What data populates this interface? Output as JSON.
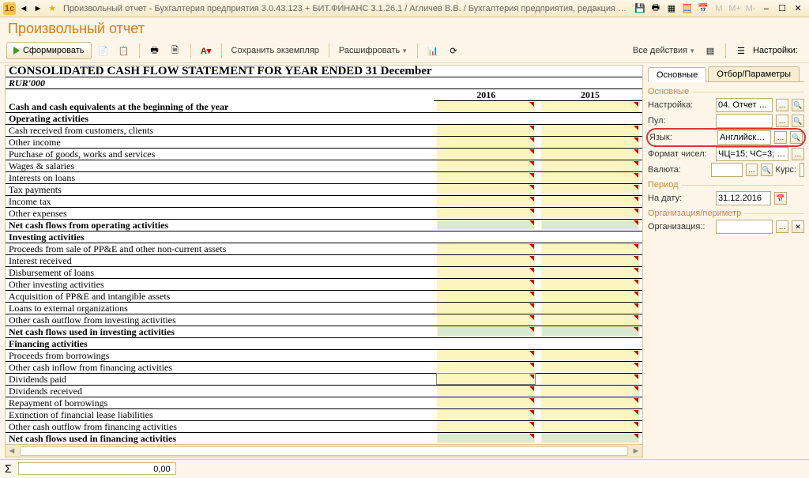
{
  "window": {
    "title": "Произвольный отчет - Бухгалтерия предприятия 3.0.43.123 + БИТ.ФИНАНС 3.1.26.1 / Агличев В.В. / Бухгалтерия предприятия, редакция 3.0  БИ…  (1С:Предприятие)"
  },
  "header": {
    "title": "Произвольный отчет"
  },
  "toolbar": {
    "form_btn": "Сформировать",
    "save_copy": "Сохранить экземпляр",
    "decrypt": "Расшифровать",
    "all_actions": "Все действия",
    "settings_label": "Настройки:"
  },
  "report": {
    "title": "CONSOLIDATED CASH FLOW STATEMENT FOR YEAR ENDED 31 December",
    "currency": "RUR'000",
    "years": [
      "2016",
      "2015"
    ],
    "rows": [
      {
        "t": "Cash and cash equivalents at the beginning of the year",
        "b": true,
        "c": [
          1,
          1
        ]
      },
      {
        "t": "Operating activities",
        "b": true,
        "c": [
          0,
          0
        ]
      },
      {
        "t": "Cash received from customers, clients",
        "c": [
          1,
          1
        ]
      },
      {
        "t": "Other income",
        "c": [
          1,
          1
        ]
      },
      {
        "t": "Purchase of goods, works and services",
        "c": [
          1,
          1
        ]
      },
      {
        "t": "Wages & salaries",
        "c": [
          1,
          1
        ]
      },
      {
        "t": "Interests on loans",
        "c": [
          1,
          1
        ]
      },
      {
        "t": "Tax payments",
        "c": [
          1,
          1
        ]
      },
      {
        "t": "Income tax",
        "c": [
          1,
          1
        ]
      },
      {
        "t": "Other expenses",
        "c": [
          1,
          1
        ]
      },
      {
        "t": "Net cash flows from operating activities",
        "b": true,
        "c": [
          2,
          2
        ]
      },
      {
        "t": "Investing activities",
        "b": true,
        "c": [
          0,
          0
        ]
      },
      {
        "t": "Proceeds from sale of PP&E and other non-current assets",
        "c": [
          1,
          1
        ]
      },
      {
        "t": "Interest received",
        "c": [
          1,
          1
        ]
      },
      {
        "t": "Disbursement of loans",
        "c": [
          1,
          1
        ]
      },
      {
        "t": "Other investing activities",
        "c": [
          1,
          1
        ]
      },
      {
        "t": "Acquisition of PP&E and intangible assets",
        "c": [
          1,
          1
        ]
      },
      {
        "t": "Loans to external organizations",
        "c": [
          1,
          1
        ]
      },
      {
        "t": "Other cash outflow from investing activities",
        "c": [
          1,
          1
        ]
      },
      {
        "t": "Net cash flows used in investing activities",
        "b": true,
        "c": [
          2,
          2
        ]
      },
      {
        "t": "Financing activities",
        "b": true,
        "c": [
          0,
          0
        ]
      },
      {
        "t": "Proceeds from borrowings",
        "c": [
          1,
          1
        ]
      },
      {
        "t": "Other cash inflow from financing activities",
        "c": [
          1,
          1
        ]
      },
      {
        "t": "Dividends paid",
        "c": [
          3,
          1
        ]
      },
      {
        "t": "Dividends received",
        "c": [
          1,
          1
        ]
      },
      {
        "t": "Repayment of borrowings",
        "c": [
          1,
          1
        ]
      },
      {
        "t": "Extinction of financial lease liabilities",
        "c": [
          1,
          1
        ]
      },
      {
        "t": "Other cash outflow from  financing activities",
        "c": [
          1,
          1
        ]
      },
      {
        "t": "Net cash flows used in financing activities",
        "b": true,
        "c": [
          2,
          2
        ]
      },
      {
        "t": "Exchange adjustment",
        "c": [
          1,
          1
        ]
      },
      {
        "t": "Net increase in cash and cash equivalents in the year",
        "b": true,
        "c": [
          2,
          2
        ]
      },
      {
        "t": "Cash and cash equivalents at 31 December",
        "b": true,
        "c": [
          2,
          2
        ]
      }
    ],
    "cell_colors": {
      "1": "#fbf6bf",
      "2": "#d9ead3",
      "3": "#fbf6bf"
    }
  },
  "settings": {
    "tabs": [
      "Основные",
      "Отбор/Параметры"
    ],
    "group_main": "Основные",
    "fields": {
      "setting": {
        "label": "Настройка:",
        "value": "04. Отчет о движении денеж"
      },
      "pool": {
        "label": "Пул:",
        "value": ""
      },
      "lang": {
        "label": "Язык:",
        "value": "Английский (США)"
      },
      "numfmt": {
        "label": "Формат чисел:",
        "value": "ЧЦ=15; ЧС=3; ЧО=0"
      },
      "currency": {
        "label": "Валюта:",
        "value": ""
      },
      "rate": {
        "label": "Курс:",
        "value": "0,0000"
      }
    },
    "group_period": "Период",
    "date": {
      "label": "На дату:",
      "value": "31.12.2016"
    },
    "group_org": "Организация/периметр",
    "org": {
      "label": "Организация::",
      "value": ""
    }
  },
  "statusbar": {
    "sum": "0,00"
  }
}
